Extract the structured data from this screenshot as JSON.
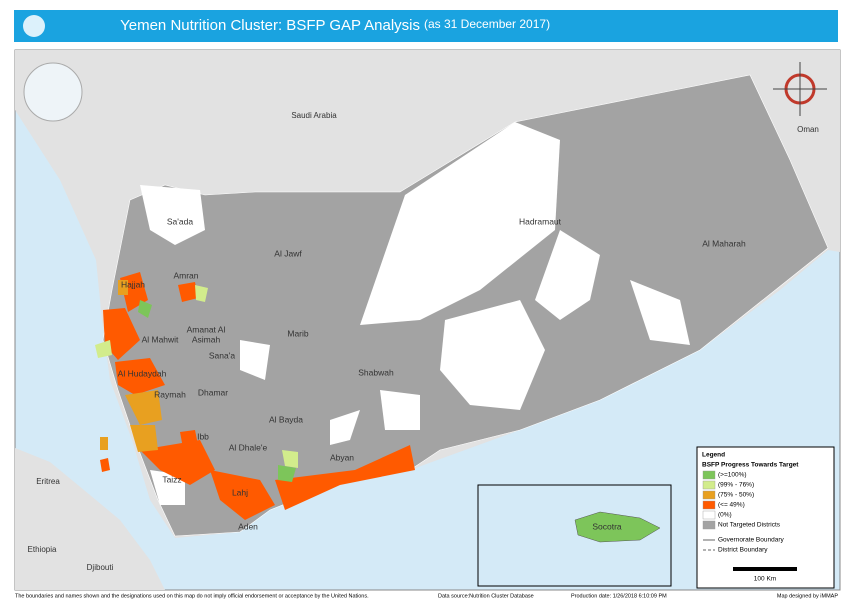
{
  "header": {
    "title": "Yemen Nutrition Cluster: BSFP GAP Analysis",
    "subtitle": "(as 31 December 2017)"
  },
  "countries": [
    "Saudi Arabia",
    "Oman",
    "Eritrea",
    "Ethiopia",
    "Djibouti"
  ],
  "governorates": [
    [
      "Sa'ada"
    ],
    [
      "Al Jawf"
    ],
    [
      "Hadramaut"
    ],
    [
      "Al Maharah"
    ],
    [
      "Amran"
    ],
    [
      "Hajjah"
    ],
    [
      "Amanat Al",
      "Asimah"
    ],
    [
      "Al Mahwit"
    ],
    [
      "Sana'a"
    ],
    [
      "Marib"
    ],
    [
      "Al Hudaydah"
    ],
    [
      "Shabwah"
    ],
    [
      "Raymah"
    ],
    [
      "Dhamar"
    ],
    [
      "Al Bayda"
    ],
    [
      "Ibb"
    ],
    [
      "Al Dhale'e"
    ],
    [
      "Abyan"
    ],
    [
      "Taizz"
    ],
    [
      "Lahj"
    ],
    [
      "Aden"
    ],
    [
      "Socotra"
    ]
  ],
  "legend": {
    "title": "Legend",
    "subtitle": "BSFP Progress Towards Target",
    "items": [
      {
        "label": "(>=100%)",
        "color": "#7dc55a"
      },
      {
        "label": "(99% - 76%)",
        "color": "#d2ec8c"
      },
      {
        "label": "(75% - 50%)",
        "color": "#e8a020"
      },
      {
        "label": "(<= 49%)",
        "color": "#ff5a00"
      },
      {
        "label": "(0%)",
        "color": "#ffffff"
      },
      {
        "label": "Not Targeted Districts",
        "color": "#a3a3a3"
      }
    ],
    "lines": [
      "Governorate Boundary",
      "District Boundary"
    ]
  },
  "scale": "100 Km",
  "footer": {
    "disclaimer": "The boundaries and names shown and the designations used on this map do not imply official endorsement or acceptance by the United Nations.",
    "source": "Data source:Nutrition Cluster Database",
    "date": "Production date: 1/26/2018 6:10:09 PM",
    "credit": "Map designed by iMMAP"
  }
}
